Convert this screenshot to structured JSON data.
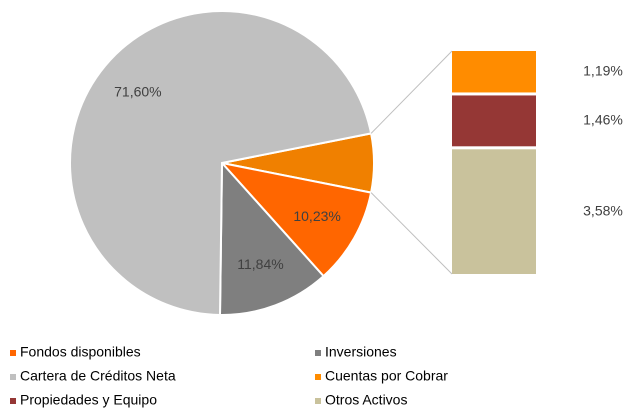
{
  "chart_data": {
    "type": "pie-of-bar",
    "categories": [
      "Fondos disponibles",
      "Inversiones",
      "Cartera de Créditos Neta",
      "Cuentas por Cobrar",
      "Propiedades y Equipo",
      "Otros Activos"
    ],
    "values": [
      10.23,
      11.84,
      71.6,
      1.19,
      1.46,
      3.58
    ],
    "value_labels": [
      "10,23%",
      "11,84%",
      "71,60%",
      "1,19%",
      "1,46%",
      "3,58%"
    ],
    "colors": [
      "#ff6600",
      "#7f7f7f",
      "#c0c0c0",
      "#ff8c00",
      "#953735",
      "#c9c29c"
    ],
    "other_color": "#f08000",
    "legend": "bottom"
  }
}
